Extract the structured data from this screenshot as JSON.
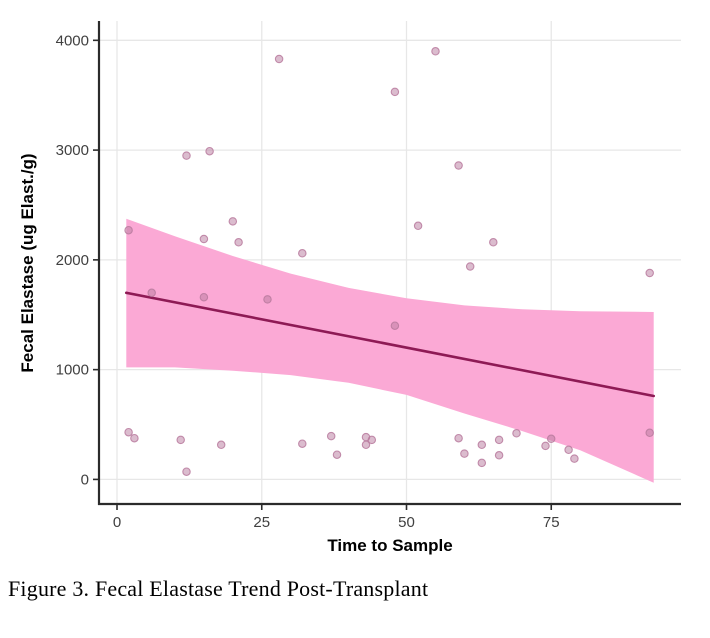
{
  "figure": {
    "caption": "Figure 3. Fecal Elastase Trend Post-Transplant"
  },
  "chart_data": {
    "type": "scatter",
    "title": "",
    "xlabel": "Time to Sample",
    "ylabel": "Fecal Elastase (ug Elast./g)",
    "x_ticks": [
      0,
      25,
      50,
      75
    ],
    "y_ticks": [
      0,
      1000,
      2000,
      3000,
      4000
    ],
    "xlim": [
      -3.11,
      97.41
    ],
    "ylim": [
      -224,
      4176
    ],
    "grid": "major-only",
    "legend": "none",
    "points": [
      {
        "t": 2,
        "v": 2270
      },
      {
        "t": 6,
        "v": 1700
      },
      {
        "t": 12,
        "v": 2950
      },
      {
        "t": 15,
        "v": 1660
      },
      {
        "t": 15,
        "v": 2190
      },
      {
        "t": 16,
        "v": 2990
      },
      {
        "t": 20,
        "v": 2350
      },
      {
        "t": 21,
        "v": 2160
      },
      {
        "t": 26,
        "v": 1640
      },
      {
        "t": 28,
        "v": 3830
      },
      {
        "t": 32,
        "v": 2060
      },
      {
        "t": 48,
        "v": 1400
      },
      {
        "t": 48,
        "v": 3530
      },
      {
        "t": 52,
        "v": 2310
      },
      {
        "t": 55,
        "v": 3900
      },
      {
        "t": 59,
        "v": 2860
      },
      {
        "t": 61,
        "v": 1940
      },
      {
        "t": 65,
        "v": 2160
      },
      {
        "t": 92,
        "v": 1880
      },
      {
        "t": 2,
        "v": 430
      },
      {
        "t": 3,
        "v": 375
      },
      {
        "t": 11,
        "v": 360
      },
      {
        "t": 12,
        "v": 70
      },
      {
        "t": 18,
        "v": 315
      },
      {
        "t": 32,
        "v": 325
      },
      {
        "t": 37,
        "v": 395
      },
      {
        "t": 38,
        "v": 225
      },
      {
        "t": 43,
        "v": 385
      },
      {
        "t": 44,
        "v": 360
      },
      {
        "t": 43,
        "v": 315
      },
      {
        "t": 59,
        "v": 375
      },
      {
        "t": 60,
        "v": 235
      },
      {
        "t": 63,
        "v": 315
      },
      {
        "t": 63,
        "v": 150
      },
      {
        "t": 66,
        "v": 360
      },
      {
        "t": 66,
        "v": 220
      },
      {
        "t": 69,
        "v": 420
      },
      {
        "t": 75,
        "v": 370
      },
      {
        "t": 74,
        "v": 305
      },
      {
        "t": 78,
        "v": 270
      },
      {
        "t": 79,
        "v": 190
      },
      {
        "t": 92,
        "v": 425
      }
    ],
    "trend_line": {
      "type": "linear",
      "x1": 1.6,
      "y1": 1700,
      "x2": 92.7,
      "y2": 760
    },
    "ci_band": [
      {
        "t": 1.6,
        "lo": 1020,
        "hi": 2375
      },
      {
        "t": 10,
        "lo": 1020,
        "hi": 2215
      },
      {
        "t": 20,
        "lo": 990,
        "hi": 2035
      },
      {
        "t": 30,
        "lo": 950,
        "hi": 1875
      },
      {
        "t": 40,
        "lo": 880,
        "hi": 1745
      },
      {
        "t": 50,
        "lo": 770,
        "hi": 1650
      },
      {
        "t": 60,
        "lo": 600,
        "hi": 1585
      },
      {
        "t": 70,
        "lo": 440,
        "hi": 1550
      },
      {
        "t": 80,
        "lo": 265,
        "hi": 1532
      },
      {
        "t": 92.7,
        "lo": -30,
        "hi": 1525
      }
    ],
    "colors": {
      "ribbon": "#FBA9D5",
      "trend": "#8E1A55",
      "point": "#B87A9D",
      "grid": "#E7E7E7",
      "axis": "#2B2B2B",
      "tick_label": "#404040",
      "text": "#000000"
    }
  }
}
